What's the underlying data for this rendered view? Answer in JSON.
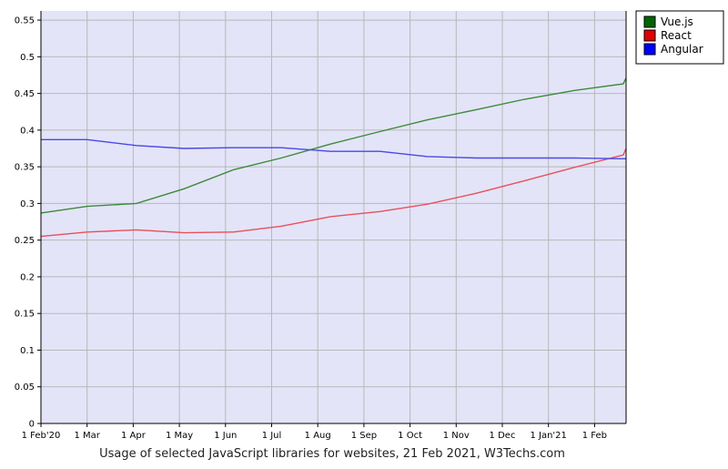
{
  "chart_data": {
    "type": "line",
    "title": "",
    "caption": "Usage of selected JavaScript libraries for websites, 21 Feb 2021, W3Techs.com",
    "xlabel": "",
    "ylabel": "",
    "x": [
      "2020-02-01",
      "2020-03-01",
      "2020-04-01",
      "2020-05-01",
      "2020-06-01",
      "2020-07-01",
      "2020-08-01",
      "2020-09-01",
      "2020-10-01",
      "2020-11-01",
      "2020-12-01",
      "2021-01-01",
      "2021-02-01",
      "2021-02-21"
    ],
    "x_tick_labels": [
      "1 Feb'20",
      "1 Mar",
      "1 Apr",
      "1 May",
      "1 Jun",
      "1 Jul",
      "1 Aug",
      "1 Sep",
      "1 Oct",
      "1 Nov",
      "1 Dec",
      "1 Jan'21",
      "1 Feb"
    ],
    "y_tick_labels": [
      "0",
      "0.05",
      "0.1",
      "0.15",
      "0.2",
      "0.25",
      "0.3",
      "0.35",
      "0.4",
      "0.45",
      "0.5",
      "0.55"
    ],
    "ylim": [
      0,
      0.55
    ],
    "grid": true,
    "legend_position": "top-right",
    "plot_background": "#e4e4f8",
    "series": [
      {
        "name": "Vue.js",
        "color": "#3c8a3c",
        "legend_color": "#006400",
        "values": [
          0.287,
          0.296,
          0.3,
          0.32,
          0.346,
          0.362,
          0.381,
          0.398,
          0.414,
          0.428,
          0.442,
          0.454,
          0.463,
          0.471
        ]
      },
      {
        "name": "React",
        "color": "#e8505a",
        "legend_color": "#e00000",
        "values": [
          0.255,
          0.261,
          0.264,
          0.26,
          0.261,
          0.269,
          0.282,
          0.289,
          0.299,
          0.314,
          0.331,
          0.349,
          0.366,
          0.375
        ]
      },
      {
        "name": "Angular",
        "color": "#4848e8",
        "legend_color": "#0000ff",
        "values": [
          0.387,
          0.387,
          0.379,
          0.375,
          0.376,
          0.376,
          0.371,
          0.371,
          0.364,
          0.362,
          0.362,
          0.362,
          0.361,
          0.361
        ]
      }
    ]
  }
}
